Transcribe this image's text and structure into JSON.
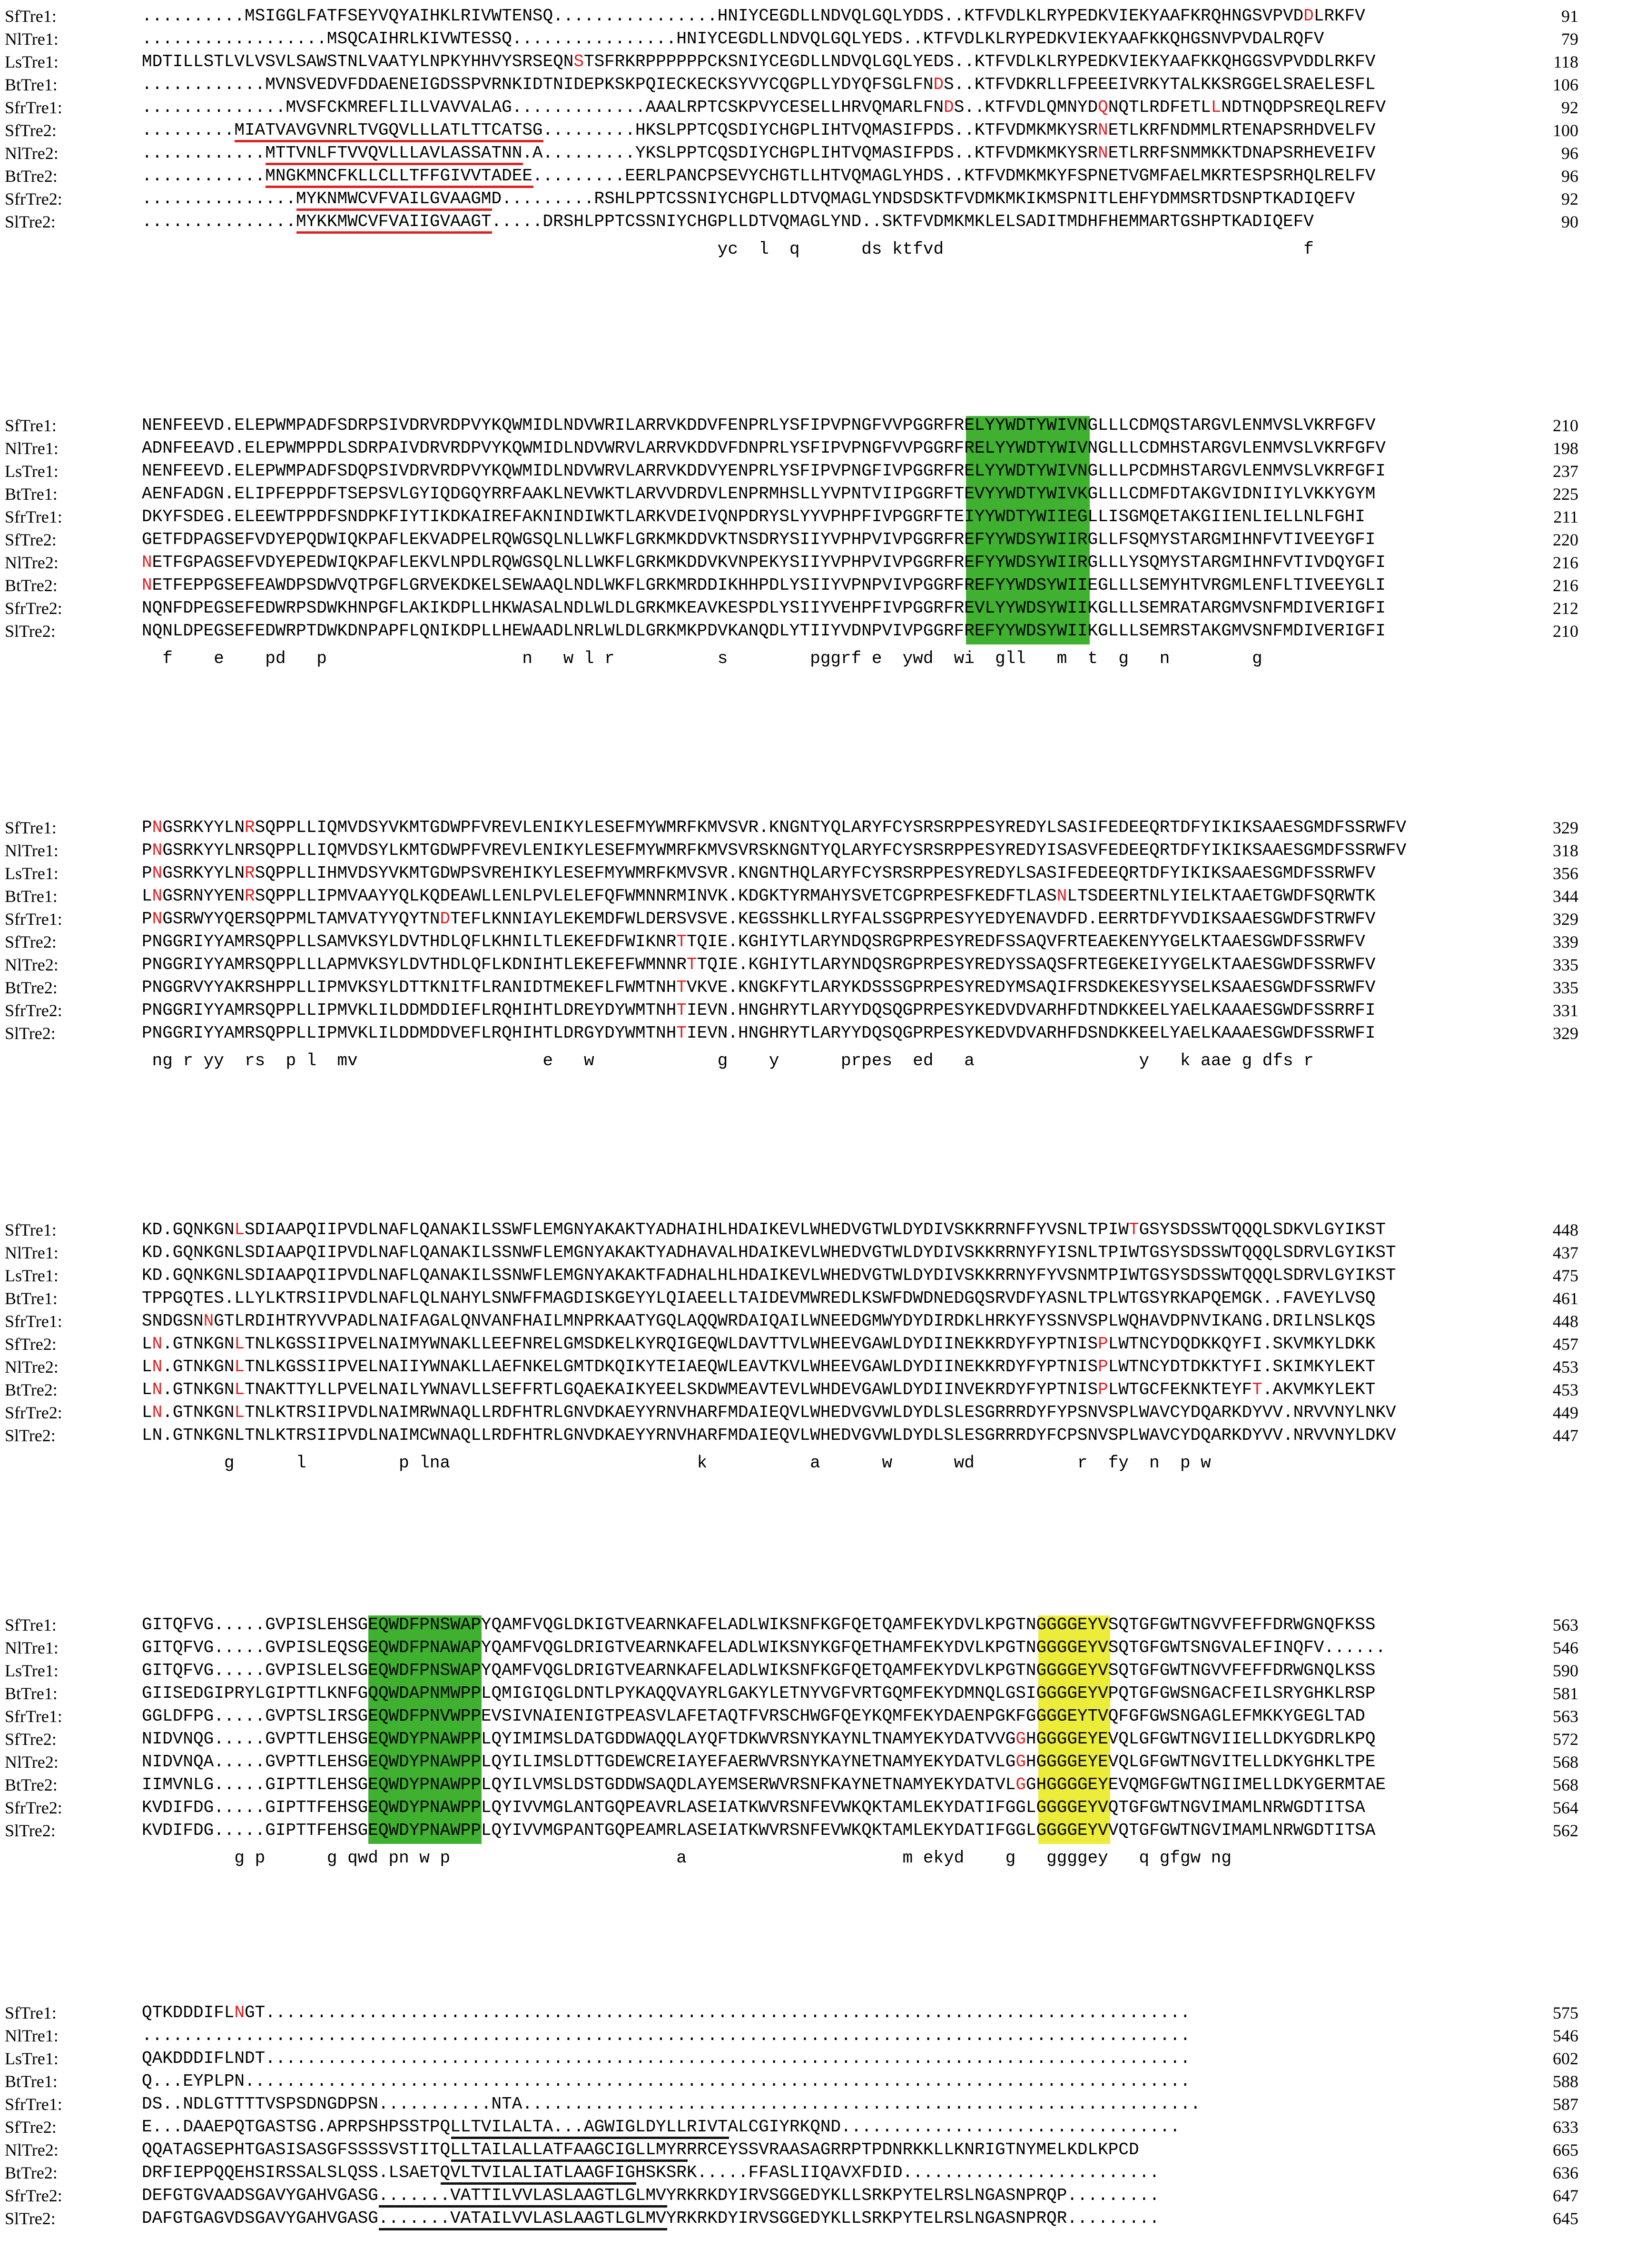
{
  "blocks": [
    {
      "rows": [
        {
          "name": "SfTre1:",
          "seq": "..........MSIGGLFATFSEYVQYAIHKLRIVWTENSQ................HNIYCEGDLLNDVQLGQLYDDS..KTFVDLKLRYPEDKVIEKYAAFKRQHNGSVPVDDLRKFV",
          "num": "91",
          "red": [
            113
          ]
        },
        {
          "name": "NlTre1:",
          "seq": "..................MSQCAIHRLKIVWTESSQ................HNIYCEGDLLNDVQLGQLYEDS..KTFVDLKLRYPEDKVIEKYAAFKKQHGSNVPVDALRQFV",
          "num": "79",
          "red": []
        },
        {
          "name": "LsTre1:",
          "seq": "MDTILLSTLVLVSVLSAWSTNLVAATYLNPKYHHVYSRSEQNSTSFRKRPPPPPPCKSNIYCEGDLLNDVQLGQLYEDS..KTFVDLKLRYPEDKVIEKYAAFKKQHGGSVPVDDLRKFV",
          "num": "118",
          "red": [
            42
          ]
        },
        {
          "name": "BtTre1:",
          "seq": "............MVNSVEDVFDDAENEIGDSSPVRNKIDTNIDEPKSKPQIECKECKSYVYCQGPLLYDYQFSGLFNDS..KTFVDKRLLFPEEEIVRKYTALKKSRGGELSRAELESFL",
          "num": "106",
          "red": [
            77
          ]
        },
        {
          "name": "SfrTre1:",
          "seq": "..............MVSFCKMREFLILLVAVVALAG.............AAALRPTCSKPVYCESELLHRVQMARLFNDS..KTFVDLQMNYDQNQTLRDFETLLNDTNQDPSREQLREFV",
          "num": "92",
          "red": [
            78,
            93,
            104
          ]
        },
        {
          "name": "SfTre2:",
          "seq": ".........MIATVAVGVNRLTVGQVLLLATLTTCATSG.........HKSLPPTCQSDIYCHGPLIHTVQMASIFPDS..KTFVDMKMKYSRNETLKRFNDMMLRTENAPSRHDVELFV",
          "num": "100",
          "red": [
            93
          ]
        },
        {
          "name": "NlTre2:",
          "seq": "............MTTVNLFTVVQVLLLAVLASSATNN.A.........YKSLPPTCQSDIYCHGPLIHTVQMASIFPDS..KTFVDMKMKYSRNETLRRFSNMMKKTDNAPSRHEVEIFV",
          "num": "96",
          "red": [
            93
          ]
        },
        {
          "name": "BtTre2:",
          "seq": "............MNGKMNCFKLLCLLTFFGIVVTADEE.........EERLPANCPSEVYCHGTLLHTVQMAGLYHDS..KTFVDMKMKYFSPNETVGMFAELMKRTESPSRHQLRELFV",
          "num": "96",
          "red": []
        },
        {
          "name": "SfrTre2:",
          "seq": "...............MYKNMWCVFVAILGVAAGMD.........RSHLPPTCSSNIYCHGPLLDTVQMAGLYNDSDSKTFVDMKMKIKMSPNITLEHFYDMMSRTDSNPTKADIQEFV",
          "num": "92",
          "red": []
        },
        {
          "name": "SlTre2:",
          "seq": "...............MYKKMWCVFVAIIGVAAGT.....DRSHLPPTCSSNIYCHGPLLDTVQMAGLYND..SKTFVDMKMKLELSADITMDHFHEMMARTGSHPTKADIQEFV",
          "num": "90",
          "red": []
        }
      ],
      "consensus": "                                                        yc  l  q      ds ktfvd                                   f"
    },
    {
      "rows": [
        {
          "name": "SfTre1:",
          "seq": "NENFEEVD.ELEPWMPADFSDRPSIVDRVRDPVYKQWMIDLNDVWRILARRVKDDVFENPRLYSFIPVPNGFVVPGGRFRELYYWDTYWIVNGLLLCDMQSTARGVLENMVSLVKRFGFV",
          "num": "210",
          "red": []
        },
        {
          "name": "NlTre1:",
          "seq": "ADNFEEAVD.ELEPWMPPDLSDRPAIVDRVRDPVYKQWMIDLNDVWRVLARRVKDDVFDNPRLYSFIPVPNGFVVPGGRFRELYYWDTYWIVNGLLLCDMHSTARGVLENMVSLVKRFGFV",
          "num": "198",
          "red": []
        },
        {
          "name": "LsTre1:",
          "seq": "NENFEEVD.ELEPWMPADFSDQPSIVDRVRDPVYKQWMIDLNDVWRVLARRVKDDVYENPRLYSFIPVPNGFIVPGGRFRELYYWDTYWIVNGLLLPCDMHSTARGVLENMVSLVKRFGFI",
          "num": "237",
          "red": []
        },
        {
          "name": "BtTre1:",
          "seq": "AENFADGN.ELIPFEPPDFTSEPSVLGYIQDGQYRRFAAKLNEVWKTLARVVDRDVLENPRMHSLLYVPNTVIIPGGRFTEVYYWDTYWIVKGLLLCDMFDTAKGVIDNIIYLVKKYGYM",
          "num": "225",
          "red": []
        },
        {
          "name": "SfrTre1:",
          "seq": "DKYFSDEG.ELEEWTPPDFSNDPKFIYTIKDKAIREFAKNINDIWKTLARKVDEIVQNPDRYSLYYVPHPFIVPGGRFTEIYYWDTYWIIEGLLISGMQETAKGIIENLIELLNLFGHI",
          "num": "211",
          "red": []
        },
        {
          "name": "SfTre2:",
          "seq": "GETFDPAGSEFVDYEPQDWIQKPAFLEKVADPELRQWGSQLNLLWKFLGRKMKDDVKTNSDRYSIIYVPHPVIVPGGRFREFYYWDSYWIIRGLLFSQMYSTARGMIHNFVTIVEEYGFI",
          "num": "220",
          "red": []
        },
        {
          "name": "NlTre2:",
          "seq": "NETFGPAGSEFVDYEPEDWIQKPAFLEKVLNPDLRQWGSQLNLLWKFLGRKMKDDVKVNPEKYSIIYVPHPVIVPGGRFREFYYWDSYWIIRGLLLYSQMYSTARGMIHNFVTIVDQYGFI",
          "num": "216",
          "red": [
            0
          ]
        },
        {
          "name": "BtTre2:",
          "seq": "NETFEPPGSEFEAWDPSDWVQTPGFLGRVEKDKELSEWAAQLNDLWKFLGRKMRDDIKHHPDLYSIIYVPNPVIVPGGRFREFYYWDSYWIIEGLLLSEMYHTVRGMLENFLTIVEEYGLI",
          "num": "216",
          "red": [
            0
          ]
        },
        {
          "name": "SfrTre2:",
          "seq": "NQNFDPEGSEFEDWRPSDWKHNPGFLAKIKDPLLHKWASALNDLWLDLGRKMKEAVKESPDLYSIIYVEHPFIVPGGRFREVLYYWDSYWIIKGLLLSEMRATARGMVSNFMDIVERIGFI",
          "num": "212",
          "red": []
        },
        {
          "name": "SlTre2:",
          "seq": "NQNLDPEGSEFEDWRPTDWKDNPAPFLQNIKDPLLHEWAADLNRLWLDLGRKMKPDVKANQDLYTIIYVDNPVIVPGGRFREFYYWDSYWIIKGLLLSEMRSTAKGMVSNFMDIVERIGFI",
          "num": "210",
          "red": []
        }
      ],
      "consensus": "  f    e    pd   p                   n   w l r          s        pggrf e  ywd  wi  gll   m  t  g   n        g"
    },
    {
      "rows": [
        {
          "name": "SfTre1:",
          "seq": "PNGSRKYYLNRSQPPLLIQMVDSYVKMTGDWPFVREVLENIKYLESEFMYWMRFKMVSVR.KNGNTYQLARYFCYSRSRPPESYREDYLSASIFEDEEQRTDFYIKIKSAAESGMDFSSRWFV",
          "num": "329",
          "red": [
            1,
            10
          ]
        },
        {
          "name": "NlTre1:",
          "seq": "PNGSRKYYLNRSQPPLLIQMVDSYLKMTGDWPFVREVLENIKYLESEFMYWMRFKMVSVRSKNGNTYQLARYFCYSRSRPPESYREDYISASVFEDEEQRTDFYIKIKSAAESGMDFSSRWFV",
          "num": "318",
          "red": [
            1
          ]
        },
        {
          "name": "LsTre1:",
          "seq": "PNGSRKYYLNRSQPPLLIHMVDSYVKMTGDWPSVREHIKYLESEFMYWMRFKMVSVR.KNGNTHQLARYFCYSRSRPPESYREDYLSASIFEDEEQRTDFYIKIKSAAESGMDFSSRWFV",
          "num": "356",
          "red": [
            1,
            10
          ]
        },
        {
          "name": "BtTre1:",
          "seq": "LNGSRNYYENRSQPPLLIPMVAAYYQLKQDEAWLLENLPVLELEFQFWMNNRMINVK.KDGKTYRMAHYSVETCGPRPESFKEDFTLASNLTSDEERTNLYIELKTAAETGWDFSQRWTK",
          "num": "344",
          "red": [
            1,
            10,
            89
          ]
        },
        {
          "name": "SfrTre1:",
          "seq": "PNGSRWYYQERSQPPMLTAMVATYYQYTNDTEFLKNNIAYLEKEMDFWLDERSVSVE.KEGSSHKLLRYFALSSGPRPESYYEDYENAVDFD.EERRTDFYVDIKSAAESGWDFSTRWFV",
          "num": "329",
          "red": [
            1,
            29
          ]
        },
        {
          "name": "SfTre2:",
          "seq": "PNGGRIYYAMRSQPPLLSAMVKSYLDVTHDLQFLKHNILTLEKEFDFWIKNRTTQIE.KGHIYTLARYNDQSRGPRPESYREDFSSAQVFRTEAEKENYYGELKTAAESGWDFSSRWFV",
          "num": "339",
          "red": [
            52
          ]
        },
        {
          "name": "NlTre2:",
          "seq": "PNGGRIYYAMRSQPPLLLAPMVKSYLDVTHDLQFLKDNIHTLEKEFEFWMNNRTTQIE.KGHIYTLARYNDQSRGPRPESYREDYSSAQSFRTEGEKEIYYGELKTAAESGWDFSSRWFV",
          "num": "335",
          "red": [
            53
          ]
        },
        {
          "name": "BtTre2:",
          "seq": "PNGGRVYYAKRSHPPLLIPMVKSYLDTTKNITFLRANIDTMEKEFLFWMTNHTVKVE.KNGKFYTLARYKDSSSGPRPESYREDYMSAQIFRSDKEKESYYSELKSAAESGWDFSSRWFV",
          "num": "335",
          "red": [
            52
          ]
        },
        {
          "name": "SfrTre2:",
          "seq": "PNGGRIYYAMRSQPPLLIPMVKLILDDMDDIEFLRQHIHTLDREYDYWMTNHTIEVN.HNGHRYTLARYYDQSQGPRPESYKEDVDVARHFDTNDKKEELYAELKAAAESGWDFSSRRFI",
          "num": "331",
          "red": [
            52
          ]
        },
        {
          "name": "SlTre2:",
          "seq": "PNGGRIYYAMRSQPPLLIPMVKLILDDMDDVEFLRQHIHTLDRGYDYWMTNHTIEVN.HNGHRYTLARYYDQSQGPRPESYKEDVDVARHFDSNDKKEELYAELKAAAESGWDFSSRWFI",
          "num": "329",
          "red": [
            52
          ]
        }
      ],
      "consensus": " ng r yy  rs  p l  mv                  e   w            g    y      prpes  ed   a                y   k aae g dfs r"
    },
    {
      "rows": [
        {
          "name": "SfTre1:",
          "seq": "KD.GQNKGNLSDIAAPQIIPVDLNAFLQANAKILSSWFLEMGNYAKAKTYADHAIHLHDAIKEVLWHEDVGTWLDYDIVSKKRRNFFYVSNLTPIWTGSYSDSSWTQQQLSDKVLGYIKST",
          "num": "448",
          "red": [
            9,
            96
          ]
        },
        {
          "name": "NlTre1:",
          "seq": "KD.GQNKGNLSDIAAPQIIPVDLNAFLQANAKILSSNWFLEMGNYAKAKTYADHAVALHDAIKEVLWHEDVGTWLDYDIVSKKRRNYFYISNLTPIWTGSYSDSSWTQQQLSDRVLGYIKST",
          "num": "437",
          "red": []
        },
        {
          "name": "LsTre1:",
          "seq": "KD.GQNKGNLSDIAAPQIIPVDLNAFLQANAKILSSNWFLEMGNYAKAKTFADHALHLHDAIKEVLWHEDVGTWLDYDIVSKKRRNYFYVSNMTPIWTGSYSDSSWTQQQLSDRVLGYIKST",
          "num": "475",
          "red": []
        },
        {
          "name": "BtTre1:",
          "seq": "TPPGQTES.LLYLKTRSIIPVDLNAFLQLNAHYLSNWFFMAGDISKGEYYLQIAEELLTAIDEVMWREDLKSWFDWDNEDGQSRVDFYASNLTPLWTGSYRKAPQEMGK..FAVEYLVSQ",
          "num": "461",
          "red": []
        },
        {
          "name": "SfrTre1:",
          "seq": "SNDGSNNGTLRDIHTRYVVPADLNAIFAGALQNVANFHAILMNPRKAATYGQLAQQWRDAIQAILWNEEDGMWYDYDIRDKLHRKYFYSSNVSPLWQHAVDPNVIKANG.DRILNSLKQS",
          "num": "448",
          "red": [
            6
          ]
        },
        {
          "name": "SfTre2:",
          "seq": "LN.GTNKGNLTNLKGSSIIPVELNAIMYWNAKLLEEFNRELGMSDKELKYRQIGEQWLDAVTTVLWHEEVGAWLDYDIINEKKRDYFYPTNISPLWTNCYDQDKKQYFI.SKVMKYLDKK",
          "num": "457",
          "red": [
            1,
            9,
            93
          ]
        },
        {
          "name": "NlTre2:",
          "seq": "LN.GTNKGNLTNLKGSSIIPVELNAIIYWNAKLLAEFNKELGMTDKQIKYTEIAEQWLEAVTKVLWHEEVGAWLDYDIINEKKRDYFYPTNISPLWTNCYDTDKKTYFI.SKIMKYLEKT",
          "num": "453",
          "red": [
            1,
            9,
            93
          ]
        },
        {
          "name": "BtTre2:",
          "seq": "LN.GTNKGNLTNAKTTYLLPVELNAILYWNAVLLSEFFRTLGQAEKAIKYEELSKDWMEAVTEVLWHDEVGAWLDYDIINVEKRDYFYPTNISPLWTGCFEKNKTEYFT.AKVMKYLEKT",
          "num": "453",
          "red": [
            1,
            9,
            93,
            108
          ]
        },
        {
          "name": "SfrTre2:",
          "seq": "LN.GTNKGNLTNLKTRSIIPVDLNAIMRWNAQLLRDFHTRLGNVDKAEYYRNVHARFMDAIEQVLWHEDVGVWLDYDLSLESGRRRDYFYPSNVSPLWAVCYDQARKDYVV.NRVVNYLNKV",
          "num": "449",
          "red": [
            1,
            9
          ]
        },
        {
          "name": "SlTre2:",
          "seq": "LN.GTNKGNLTNLKTRSIIPVDLNAIMCWNAQLLRDFHTRLGNVDKAEYYRNVHARFMDAIEQVLWHEDVGVWLDYDLSLESGRRRDYFCPSNVSPLWAVCYDQARKDYVV.NRVVNYLDKV",
          "num": "447",
          "red": []
        }
      ],
      "consensus": "        g      l         p lna                        k          a      w      wd          r  fy  n  p w"
    },
    {
      "rows": [
        {
          "name": "SfTre1:",
          "seq": "GITQFVG.....GVPISLEHSGEQWDFPNSWAPYQAMFVQGLDKIGTVEARNKAFELADLWIKSNFKGFQETQAMFEKYDVLKPGTNGGGGEYVSQTGFGWTNGVVFEFFDRWGNQFKSS",
          "num": "563",
          "red": []
        },
        {
          "name": "NlTre1:",
          "seq": "GITQFVG.....GVPISLEQSGEQWDFPNAWAPYQAMFVQGLDRIGTVEARNKAFELADLWIKSNYKGFQETHAMFEKYDVLKPGTNGGGGEYVSQTGFGWTSNGVALEFINQFV......",
          "num": "546",
          "red": []
        },
        {
          "name": "LsTre1:",
          "seq": "GITQFVG.....GVPISLELSGEQWDFPNSWAPYQAMFVQGLDRIGTVEARNKAFELADLWIKSNFKGFQETQAMFEKYDVLKPGTNGGGGEYVSQTGFGWTNGVVFEFFDRWGNQLKSS",
          "num": "590",
          "red": []
        },
        {
          "name": "BtTre1:",
          "seq": "GIISEDGIPRYLGIPTTLKNFGQQWDAPNMWPPLQMIGIQGLDNTLPYKAQQVAYRLGAKYLETNYVGFVRTGQMFEKYDMNQLGSIGGGGEYVPQTGFGWSNGACFEILSRYGHKLRSP",
          "num": "581",
          "red": []
        },
        {
          "name": "SfrTre1:",
          "seq": "GGLDFPG.....GVPTSLIRSGEQWDFPNVWPPEVSIVNAIENIGTPEASVLAFETAQTFVRSCHWGFQEYKQMFEKYDAENPGKFGGGGEYTVQFGFGWSNGAGLEFMKKYGEGLTAD",
          "num": "563",
          "red": []
        },
        {
          "name": "SfTre2:",
          "seq": "NIDVNQG.....GVPTTLEHSGEQWDYPNAWPPLQYIMIMSLDATGDDWAQQLAYQFTDKWVRSNYKAYNLTNAMYEKYDATVVGGHGGGGEYEVQLGFGWTNGVIIELLDKYGDRLKPQ",
          "num": "572",
          "red": [
            85
          ]
        },
        {
          "name": "NlTre2:",
          "seq": "NIDVNQA.....GVPTTLEHSGEQWDYPNAWPPLQYILIMSLDTTGDEWCREIAYEFAERWVRSNYKAYNETNAMYEKYDATVLGGHGGGGEYEVQLGFGWTNGVITELLDKYGHKLTPE",
          "num": "568",
          "red": [
            85
          ]
        },
        {
          "name": "BtTre2:",
          "seq": "IIMVNLG.....GIPTTLEHSGEQWDYPNAWPPLQYILVMSLDSTGDDWSAQDLAYEMSERWVRSNFKAYNETNAMYEKYDATVLGGHGGGGEYEVQMGFGWTNGIIMELLDKYGERMTAE",
          "num": "568",
          "red": [
            85
          ]
        },
        {
          "name": "SfrTre2:",
          "seq": "KVDIFDG.....GIPTTFEHSGEQWDYPNAWPPLQYIVVMGLANTGQPEAVRLASEIATKWVRSNFEVWKQKTAMLEKYDATIFGGLGGGGEYVQTGFGWTNGVIMAMLNRWGDTITSA",
          "num": "564",
          "red": []
        },
        {
          "name": "SlTre2:",
          "seq": "KVDIFDG.....GIPTTFEHSGEQWDYPNAWPPLQYIVVMGPANTGQPEAMRLASEIATKWVRSNFEVWKQKTAMLEKYDATIFGGLGGGGEYVVQTGFGWTNGVIMAMLNRWGDTITSA",
          "num": "562",
          "red": []
        }
      ],
      "consensus": "         g p      g qwd pn w p                      a                     m ekyd    g   ggggey   q gfgw ng"
    },
    {
      "rows": [
        {
          "name": "SfTre1:",
          "seq": "QTKDDDIFLNGT..........................................................................................",
          "num": "575",
          "red": [
            9
          ]
        },
        {
          "name": "NlTre1:",
          "seq": "......................................................................................................",
          "num": "546",
          "red": []
        },
        {
          "name": "LsTre1:",
          "seq": "QAKDDDIFLNDT..........................................................................................",
          "num": "602",
          "red": []
        },
        {
          "name": "BtTre1:",
          "seq": "Q...EYPLPN............................................................................................",
          "num": "588",
          "red": []
        },
        {
          "name": "SfrTre1:",
          "seq": "DS..NDLGTTTTVSPSDNGDPSN...........NTA..................................................................",
          "num": "587",
          "red": []
        },
        {
          "name": "SfTre2:",
          "seq": "E...DAAEPQTGASTSG.APRPSHPSSTPQLLTVILALTA...AGWIGLDYLLRIVTALCGIYRKQND.................................",
          "num": "633",
          "red": []
        },
        {
          "name": "NlTre2:",
          "seq": "QQATAGSEPHTGASISASGFSSSSVSTITQLLTAILALLATFAAGCIGLLMYRRRCEYSSVRAASAGRRPTPDNRKKLLKNRIGTNYMELKDLKPCD",
          "num": "665",
          "red": []
        },
        {
          "name": "BtTre2:",
          "seq": "DRFIEPPQQEHSIRSSALSLQSS.LSAETQVLTVILALIATLAAGFIGHSKSRK.....FFASLIIQAVXFDID.........................",
          "num": "636",
          "red": []
        },
        {
          "name": "SfrTre2:",
          "seq": "DEFGTGVAADSGAVYGAHVGASG.......VATTILVVLASLAAGTLGLMVYRKRKDYIRVSGGEDYKLLSRKPYTELRSLNGASNPRQP.........",
          "num": "647",
          "red": []
        },
        {
          "name": "SlTre2:",
          "seq": "DAFGTGAGVDSGAVYGAHVGASG.......VATAILVVLASLAAGTLGLMVYRKRKDYIRVSGGEDYKLLSRKPYTELRSLNGASNPRQR.........",
          "num": "645",
          "red": []
        }
      ],
      "consensus": ""
    }
  ],
  "colors": {
    "red": "#e02020",
    "green": "#3fb02f",
    "yellow": "#ecec3a"
  }
}
